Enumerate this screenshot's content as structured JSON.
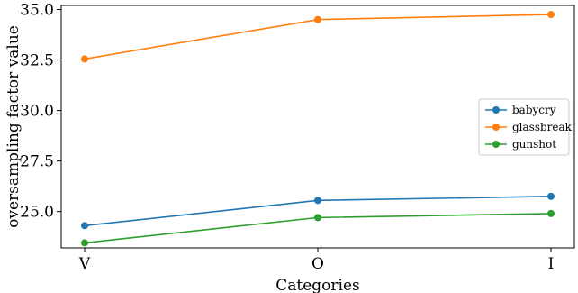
{
  "chart_data": {
    "type": "line",
    "categories": [
      "V",
      "O",
      "I"
    ],
    "xlabel": "Categories",
    "ylabel": "oversampling factor value",
    "ylim": [
      23.2,
      35.2
    ],
    "yticks": [
      25.0,
      27.5,
      30.0,
      32.5,
      35.0
    ],
    "ytick_labels": [
      "25.0",
      "27.5",
      "30.0",
      "32.5",
      "35.0"
    ],
    "grid": false,
    "legend_position": "right",
    "series": [
      {
        "name": "babycry",
        "color": "#1f77b4",
        "values": [
          24.3,
          25.55,
          25.75
        ]
      },
      {
        "name": "glassbreak",
        "color": "#ff7f0e",
        "values": [
          32.55,
          34.5,
          34.75
        ]
      },
      {
        "name": "gunshot",
        "color": "#2ca02c",
        "values": [
          23.45,
          24.7,
          24.9
        ]
      }
    ]
  }
}
